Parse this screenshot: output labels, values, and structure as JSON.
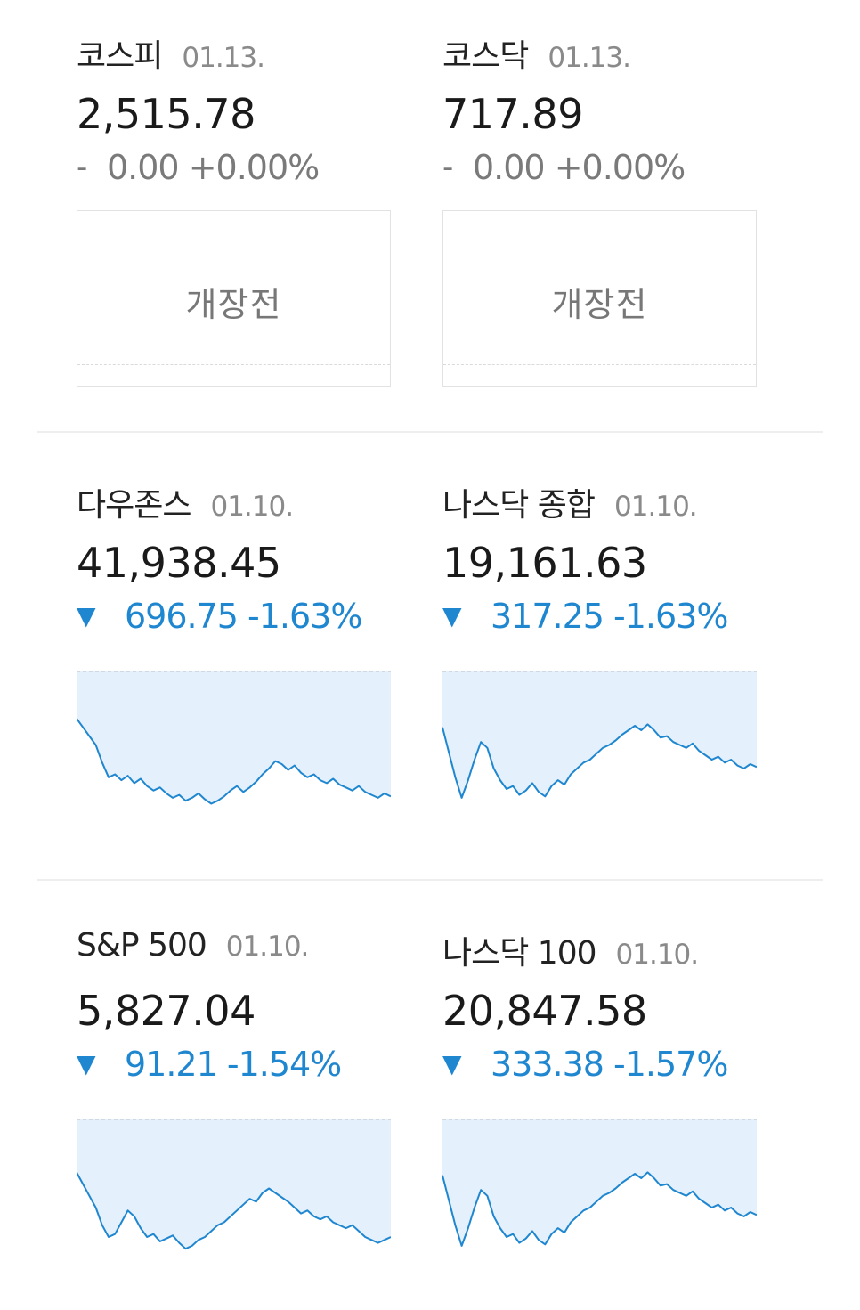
{
  "colors": {
    "down": "#1f86d0",
    "flat": "#7a7a7a",
    "spark_fill": "#e4f0fb",
    "spark_line": "#1f86d0"
  },
  "domestic": [
    {
      "name": "코스피",
      "date": "01.13.",
      "value": "2,515.78",
      "direction": "-",
      "change": "0.00 +0.00%",
      "status": "개장전"
    },
    {
      "name": "코스닥",
      "date": "01.13.",
      "value": "717.89",
      "direction": "-",
      "change": "0.00 +0.00%",
      "status": "개장전"
    }
  ],
  "us_row1": [
    {
      "name": "다우존스",
      "date": "01.10.",
      "value": "41,938.45",
      "direction": "▼",
      "change": "696.75 -1.63%"
    },
    {
      "name": "나스닥 종합",
      "date": "01.10.",
      "value": "19,161.63",
      "direction": "▼",
      "change": "317.25 -1.63%"
    }
  ],
  "us_row2": [
    {
      "name": "S&P 500",
      "date": "01.10.",
      "value": "5,827.04",
      "direction": "▼",
      "change": "91.21 -1.54%"
    },
    {
      "name": "나스닥 100",
      "date": "01.10.",
      "value": "20,847.58",
      "direction": "▼",
      "change": "333.38 -1.57%"
    }
  ],
  "sparklines": {
    "dow": [
      0.32,
      0.38,
      0.44,
      0.5,
      0.62,
      0.72,
      0.7,
      0.74,
      0.71,
      0.76,
      0.73,
      0.78,
      0.81,
      0.79,
      0.83,
      0.86,
      0.84,
      0.88,
      0.86,
      0.83,
      0.87,
      0.9,
      0.88,
      0.85,
      0.81,
      0.78,
      0.82,
      0.79,
      0.75,
      0.7,
      0.66,
      0.61,
      0.63,
      0.67,
      0.64,
      0.69,
      0.72,
      0.7,
      0.74,
      0.76,
      0.73,
      0.77,
      0.79,
      0.81,
      0.78,
      0.82,
      0.84,
      0.86,
      0.83,
      0.85
    ],
    "nasdaq": [
      0.38,
      0.55,
      0.72,
      0.86,
      0.74,
      0.6,
      0.48,
      0.52,
      0.66,
      0.74,
      0.8,
      0.78,
      0.84,
      0.81,
      0.76,
      0.82,
      0.85,
      0.78,
      0.74,
      0.77,
      0.7,
      0.66,
      0.62,
      0.6,
      0.56,
      0.52,
      0.5,
      0.47,
      0.43,
      0.4,
      0.37,
      0.4,
      0.36,
      0.4,
      0.45,
      0.44,
      0.48,
      0.5,
      0.52,
      0.49,
      0.54,
      0.57,
      0.6,
      0.58,
      0.62,
      0.6,
      0.64,
      0.66,
      0.63,
      0.65
    ],
    "sp500": [
      0.36,
      0.44,
      0.52,
      0.6,
      0.72,
      0.8,
      0.78,
      0.7,
      0.62,
      0.66,
      0.74,
      0.8,
      0.78,
      0.83,
      0.81,
      0.79,
      0.84,
      0.88,
      0.86,
      0.82,
      0.8,
      0.76,
      0.72,
      0.7,
      0.66,
      0.62,
      0.58,
      0.54,
      0.56,
      0.5,
      0.47,
      0.5,
      0.53,
      0.56,
      0.6,
      0.64,
      0.62,
      0.66,
      0.68,
      0.66,
      0.7,
      0.72,
      0.74,
      0.72,
      0.76,
      0.8,
      0.82,
      0.84,
      0.82,
      0.8
    ],
    "nasdaq100": [
      0.38,
      0.55,
      0.72,
      0.86,
      0.74,
      0.6,
      0.48,
      0.52,
      0.66,
      0.74,
      0.8,
      0.78,
      0.84,
      0.81,
      0.76,
      0.82,
      0.85,
      0.78,
      0.74,
      0.77,
      0.7,
      0.66,
      0.62,
      0.6,
      0.56,
      0.52,
      0.5,
      0.47,
      0.43,
      0.4,
      0.37,
      0.4,
      0.36,
      0.4,
      0.45,
      0.44,
      0.48,
      0.5,
      0.52,
      0.49,
      0.54,
      0.57,
      0.6,
      0.58,
      0.62,
      0.6,
      0.64,
      0.66,
      0.63,
      0.65
    ]
  }
}
